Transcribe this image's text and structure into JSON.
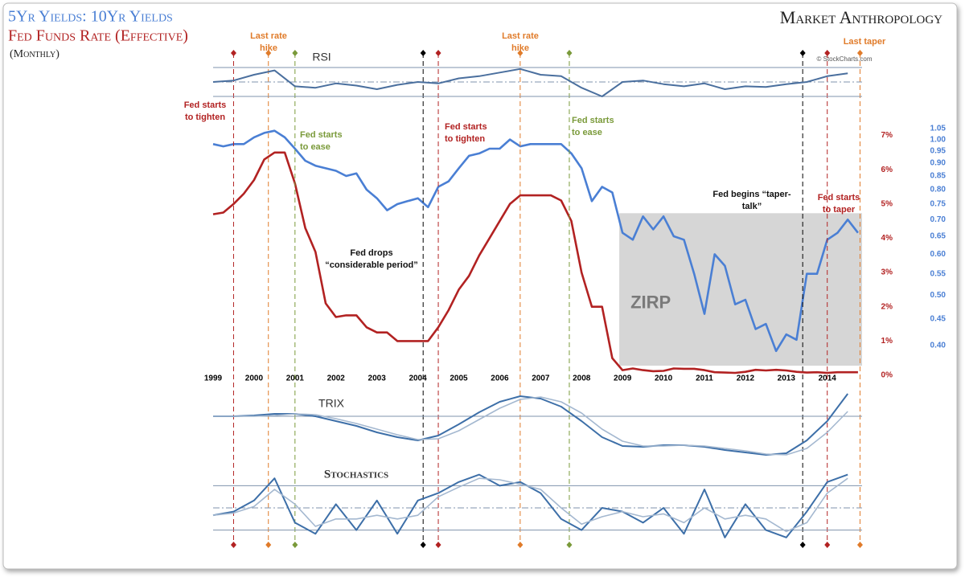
{
  "chart_data": [
    {
      "type": "line",
      "subtitle": "(Monthly)",
      "brand": "Market Anthropology",
      "x": [
        1999,
        1999.25,
        1999.5,
        1999.75,
        2000,
        2000.25,
        2000.5,
        2000.75,
        2001,
        2001.25,
        2001.5,
        2001.75,
        2002,
        2002.25,
        2002.5,
        2002.75,
        2003,
        2003.25,
        2003.5,
        2003.75,
        2004,
        2004.25,
        2004.5,
        2004.75,
        2005,
        2005.25,
        2005.5,
        2005.75,
        2006,
        2006.25,
        2006.5,
        2006.75,
        2007,
        2007.25,
        2007.5,
        2007.75,
        2008,
        2008.25,
        2008.5,
        2008.75,
        2009,
        2009.25,
        2009.5,
        2009.75,
        2010,
        2010.25,
        2010.5,
        2010.75,
        2011,
        2011.25,
        2011.5,
        2011.75,
        2012,
        2012.25,
        2012.5,
        2012.75,
        2013,
        2013.25,
        2013.5,
        2013.75,
        2014,
        2014.25,
        2014.5,
        2014.75
      ],
      "xlim": [
        1999,
        2014.85
      ],
      "xticks": [
        1999,
        2000,
        2001,
        2002,
        2003,
        2004,
        2005,
        2006,
        2007,
        2008,
        2009,
        2010,
        2011,
        2012,
        2013,
        2014
      ],
      "ylim": [
        0,
        7.2
      ],
      "yticks": [
        {
          "value": 0,
          "label": "0%"
        },
        {
          "value": 1,
          "label": "1%"
        },
        {
          "value": 2,
          "label": "2%"
        },
        {
          "value": 3,
          "label": "3%"
        },
        {
          "value": 4,
          "label": "4%"
        },
        {
          "value": 5,
          "label": "5%"
        },
        {
          "value": 6,
          "label": "6%"
        },
        {
          "value": 7,
          "label": "7%"
        }
      ],
      "y2lim": [
        0.35,
        1.05
      ],
      "y2log": true,
      "y2ticks": [
        {
          "value": 0.4,
          "label": "0.40"
        },
        0.45,
        {
          "value": 0.5,
          "label": "0.50"
        },
        0.55,
        {
          "value": 0.6,
          "label": "0.60"
        },
        0.65,
        {
          "value": 0.7,
          "label": "0.70"
        },
        0.75,
        {
          "value": 0.8,
          "label": "0.80"
        },
        0.85,
        {
          "value": 0.9,
          "label": "0.90"
        },
        0.95,
        {
          "value": 1,
          "label": "1.00"
        },
        1.05
      ],
      "series": [
        {
          "name": "5Yr Yields: 10Yr Yields",
          "color": "#4a7fd4",
          "axis": "y2",
          "values": [
            0.98,
            0.97,
            0.98,
            0.98,
            1.01,
            1.03,
            1.04,
            1.01,
            0.96,
            0.91,
            0.89,
            0.88,
            0.87,
            0.85,
            0.86,
            0.8,
            0.77,
            0.73,
            0.75,
            0.76,
            0.77,
            0.74,
            0.81,
            0.83,
            0.88,
            0.93,
            0.94,
            0.96,
            0.96,
            1.0,
            0.97,
            0.98,
            0.98,
            0.98,
            0.98,
            0.94,
            0.88,
            0.76,
            0.81,
            0.79,
            0.66,
            0.64,
            0.71,
            0.67,
            0.71,
            0.65,
            0.64,
            0.55,
            0.46,
            0.6,
            0.57,
            0.48,
            0.49,
            0.43,
            0.44,
            0.39,
            0.42,
            0.41,
            0.55,
            0.55,
            0.64,
            0.66,
            0.7,
            0.66
          ]
        },
        {
          "name": "Fed Funds Rate (Effective)",
          "color": "#b22222",
          "values": [
            4.7,
            4.75,
            5.0,
            5.3,
            5.7,
            6.3,
            6.5,
            6.5,
            5.6,
            4.3,
            3.6,
            2.1,
            1.7,
            1.75,
            1.75,
            1.4,
            1.25,
            1.25,
            1.0,
            1.0,
            1.0,
            1.0,
            1.4,
            1.9,
            2.5,
            2.9,
            3.5,
            4.0,
            4.5,
            5.0,
            5.25,
            5.25,
            5.25,
            5.25,
            5.1,
            4.5,
            3.0,
            2.0,
            2.0,
            0.5,
            0.15,
            0.2,
            0.15,
            0.12,
            0.13,
            0.2,
            0.19,
            0.19,
            0.15,
            0.09,
            0.08,
            0.07,
            0.1,
            0.16,
            0.14,
            0.16,
            0.14,
            0.1,
            0.08,
            0.09,
            0.07,
            0.09,
            0.09,
            0.09
          ]
        }
      ],
      "shade": {
        "label": "ZIRP",
        "color": "#d6d6d6",
        "x": [
          2008.92,
          2014.85
        ],
        "y": [
          0.28,
          4.73
        ]
      },
      "events": [
        {
          "x": 1999.5,
          "color": "#b22222",
          "label": [
            "Fed starts",
            "to tighten"
          ]
        },
        {
          "x": 2000.35,
          "color": "#e07b2a",
          "label": [
            "Last rate",
            "hike"
          ]
        },
        {
          "x": 2001.0,
          "color": "#7a9a3a",
          "label": [
            "Fed starts",
            "to ease"
          ]
        },
        {
          "x": 2004.13,
          "color": "#000000",
          "label": [
            "Fed drops",
            "“considerable period”"
          ]
        },
        {
          "x": 2004.5,
          "color": "#b22222",
          "label": [
            "Fed starts",
            "to tighten"
          ]
        },
        {
          "x": 2006.5,
          "color": "#e07b2a",
          "label": [
            "Last rate",
            "hike"
          ]
        },
        {
          "x": 2007.7,
          "color": "#7a9a3a",
          "label": [
            "Fed starts",
            "to ease"
          ]
        },
        {
          "x": 2013.4,
          "color": "#000000",
          "label": [
            "Fed begins “taper-",
            "talk”"
          ]
        },
        {
          "x": 2014.0,
          "color": "#b22222",
          "label": [
            "Fed starts",
            "to taper"
          ]
        },
        {
          "x": 2014.8,
          "color": "#e07b2a",
          "label": [
            "Last taper"
          ]
        }
      ]
    },
    {
      "type": "line",
      "title": "RSI",
      "credit": "© StockCharts.com",
      "x": [
        1999,
        1999.5,
        2000,
        2000.5,
        2001,
        2001.5,
        2002,
        2002.5,
        2003,
        2003.5,
        2004,
        2004.5,
        2005,
        2005.5,
        2006,
        2006.5,
        2007,
        2007.5,
        2008,
        2008.5,
        2009,
        2009.5,
        2010,
        2010.5,
        2011,
        2011.5,
        2012,
        2012.5,
        2013,
        2013.5,
        2014,
        2014.5
      ],
      "xlim": [
        1999,
        2014.85
      ],
      "ylim": [
        20,
        80
      ],
      "levels": [
        30,
        50,
        70
      ],
      "series": [
        {
          "color": "#4a6f9e",
          "values": [
            50,
            52,
            60,
            66,
            44,
            42,
            48,
            45,
            40,
            46,
            50,
            48,
            55,
            58,
            63,
            68,
            60,
            58,
            42,
            30,
            50,
            52,
            47,
            44,
            48,
            40,
            44,
            43,
            47,
            50,
            58,
            62
          ]
        }
      ]
    },
    {
      "type": "line",
      "title": "TRIX",
      "x": [
        1999,
        1999.5,
        2000,
        2000.5,
        2001,
        2001.5,
        2002,
        2002.5,
        2003,
        2003.5,
        2004,
        2004.5,
        2005,
        2005.5,
        2006,
        2006.5,
        2007,
        2007.5,
        2008,
        2008.5,
        2009,
        2009.5,
        2010,
        2010.5,
        2011,
        2011.5,
        2012,
        2012.5,
        2013,
        2013.5,
        2014,
        2014.5
      ],
      "xlim": [
        1999,
        2014.85
      ],
      "ylim": [
        -5,
        4
      ],
      "levels": [
        0
      ],
      "series": [
        {
          "color": "#3d6fa8",
          "values": [
            0,
            0,
            0.1,
            0.3,
            0.3,
            0,
            -0.6,
            -1.2,
            -2.0,
            -2.6,
            -3.0,
            -2.4,
            -1.0,
            0.5,
            1.8,
            2.5,
            2.2,
            1.2,
            -0.6,
            -2.6,
            -3.7,
            -3.8,
            -3.6,
            -3.6,
            -3.8,
            -4.2,
            -4.5,
            -4.8,
            -4.6,
            -3.0,
            -0.6,
            2.8
          ]
        },
        {
          "color": "#a4b8d0",
          "values": [
            0,
            0,
            0,
            0.1,
            0.3,
            0.2,
            -0.3,
            -0.9,
            -1.6,
            -2.3,
            -2.9,
            -2.8,
            -1.8,
            -0.4,
            1.0,
            2.1,
            2.4,
            1.8,
            0.4,
            -1.6,
            -3.1,
            -3.7,
            -3.7,
            -3.6,
            -3.7,
            -4.0,
            -4.3,
            -4.7,
            -4.8,
            -4.0,
            -2.0,
            0.6
          ]
        }
      ]
    },
    {
      "type": "line",
      "title": "Stochastics",
      "x": [
        1999,
        1999.5,
        2000,
        2000.5,
        2001,
        2001.5,
        2002,
        2002.5,
        2003,
        2003.5,
        2004,
        2004.5,
        2005,
        2005.5,
        2006,
        2006.5,
        2007,
        2007.5,
        2008,
        2008.5,
        2009,
        2009.5,
        2010,
        2010.5,
        2011,
        2011.5,
        2012,
        2012.5,
        2013,
        2013.5,
        2014,
        2014.5
      ],
      "xlim": [
        1999,
        2014.85
      ],
      "ylim": [
        0,
        100
      ],
      "levels": [
        20,
        50,
        80
      ],
      "series": [
        {
          "color": "#3d6fa8",
          "values": [
            40,
            45,
            60,
            90,
            30,
            15,
            55,
            20,
            60,
            15,
            60,
            70,
            85,
            95,
            80,
            85,
            70,
            35,
            20,
            50,
            45,
            30,
            50,
            15,
            75,
            10,
            55,
            20,
            10,
            45,
            85,
            95
          ]
        },
        {
          "color": "#a4b8d0",
          "values": [
            40,
            43,
            52,
            75,
            55,
            25,
            35,
            35,
            40,
            35,
            40,
            65,
            78,
            90,
            88,
            82,
            75,
            50,
            28,
            38,
            45,
            38,
            42,
            30,
            50,
            35,
            40,
            35,
            18,
            30,
            70,
            90
          ]
        }
      ]
    }
  ]
}
